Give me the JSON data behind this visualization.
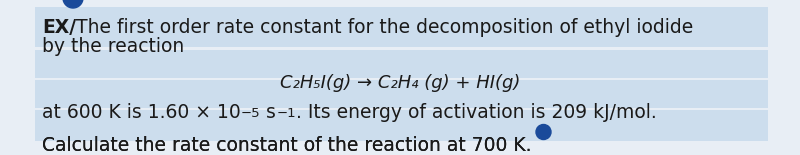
{
  "bg_color": "#e8eef5",
  "text_color": "#1a1a1a",
  "highlight_color": "#ccdded",
  "dot_color": "#1a4a9a",
  "line1_ex": "EX/",
  "line1_main": "The first order rate constant for the decomposition of ethyl iodide",
  "line2": "by the reaction",
  "reaction": "C₂H₅I(g) → C₂H₄ (g) + HI(g)",
  "line4_pre": "at 600 K is 1.60 × 10",
  "line4_sup1": "−5",
  "line4_mid": " s",
  "line4_sup2": "−1",
  "line4_post": ". Its energy of activation is 209 kJ/mol.",
  "line5": "Calculate the rate constant of the reaction at 700 K.",
  "font_size_main": 13.5,
  "font_size_reaction": 13.0,
  "font_size_sup": 9.5
}
